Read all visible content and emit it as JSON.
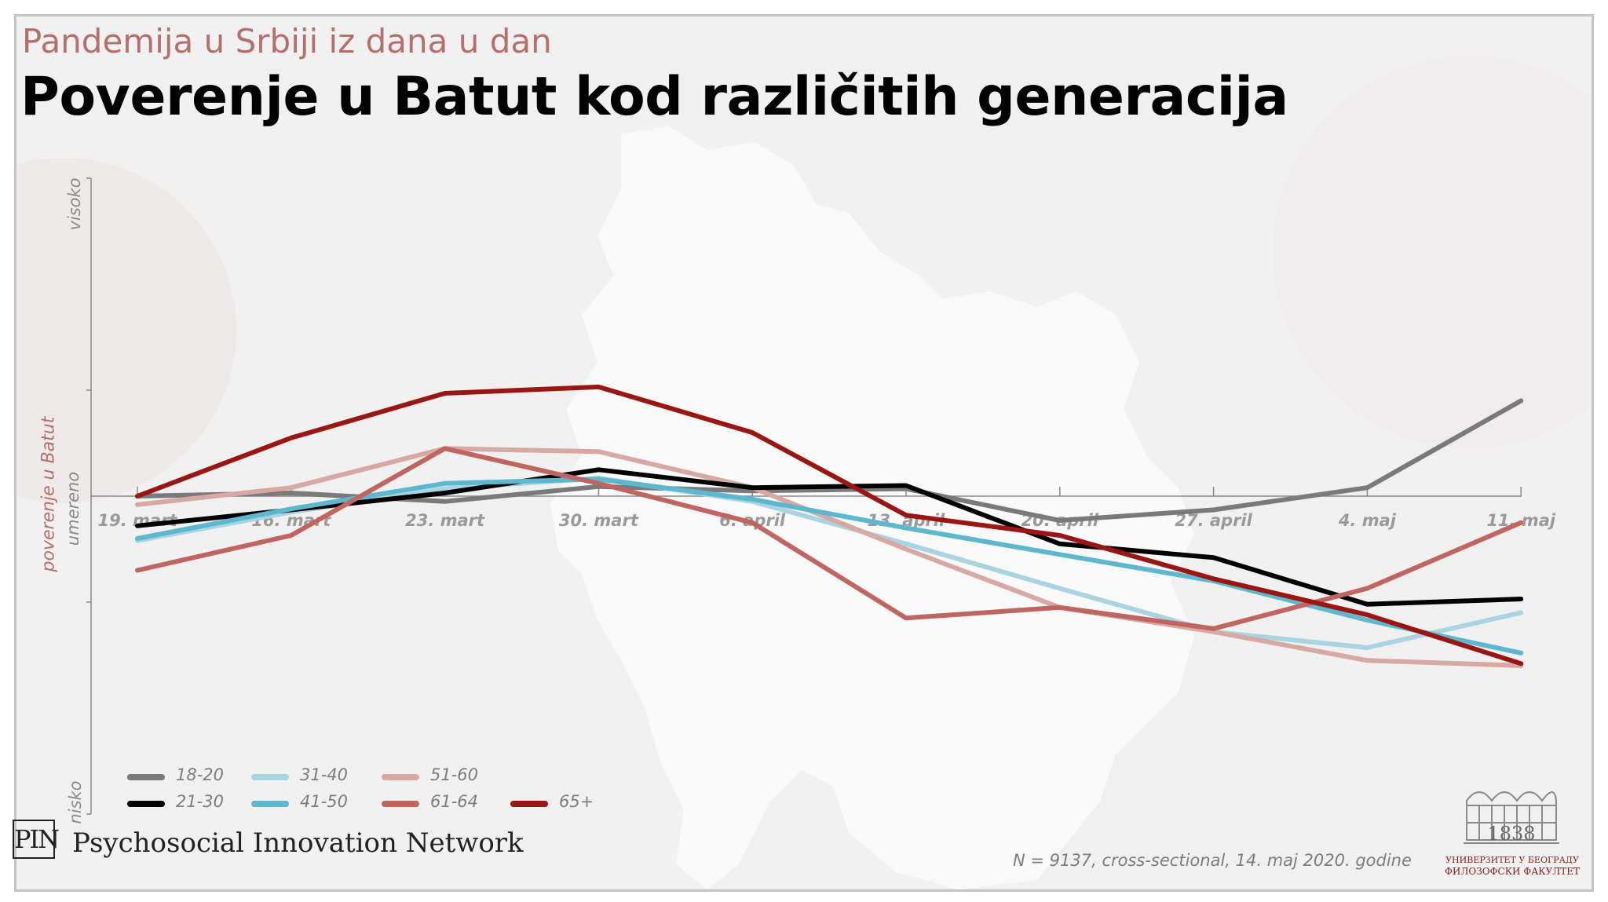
{
  "header": {
    "subtitle": "Pandemija u Srbiji iz dana u dan",
    "title": "Poverenje u Batut kod različitih generacija"
  },
  "chart_data": {
    "type": "line",
    "x": [
      "19. mart",
      "16. mart",
      "23. mart",
      "30. mart",
      "6. april",
      "13. april",
      "20. april",
      "27. april",
      "4. maj",
      "11. maj"
    ],
    "y_categories": [
      "visoko",
      "umereno",
      "nisko"
    ],
    "ylabel": "poverenje u Batut",
    "ylim": [
      0,
      6
    ],
    "series": [
      {
        "name": "18-20",
        "color": "#7a7a7a",
        "values": [
          3.0,
          3.03,
          2.95,
          3.09,
          3.05,
          3.07,
          2.77,
          2.87,
          3.08,
          3.9
        ]
      },
      {
        "name": "31-40",
        "color": "#a9d5e2",
        "values": [
          2.58,
          2.85,
          3.07,
          3.17,
          2.95,
          2.55,
          2.13,
          1.72,
          1.57,
          1.9
        ]
      },
      {
        "name": "51-60",
        "color": "#d8a8a3",
        "values": [
          2.92,
          3.08,
          3.45,
          3.42,
          3.08,
          2.5,
          1.95,
          1.72,
          1.45,
          1.4
        ]
      },
      {
        "name": "21-30",
        "color": "#000000",
        "values": [
          2.72,
          2.87,
          3.03,
          3.25,
          3.08,
          3.1,
          2.55,
          2.42,
          1.98,
          2.03
        ]
      },
      {
        "name": "41-50",
        "color": "#5cb8cf",
        "values": [
          2.6,
          2.88,
          3.12,
          3.16,
          2.97,
          2.7,
          2.45,
          2.2,
          1.83,
          1.52
        ]
      },
      {
        "name": "61-64",
        "color": "#c06560",
        "values": [
          2.3,
          2.63,
          3.45,
          3.12,
          2.75,
          1.85,
          1.95,
          1.75,
          2.13,
          2.75
        ]
      },
      {
        "name": "65+",
        "color": "#9b1612",
        "values": [
          3.0,
          3.55,
          3.97,
          4.03,
          3.6,
          2.82,
          2.63,
          2.22,
          1.88,
          1.42
        ]
      }
    ],
    "legend_position": "bottom-left"
  },
  "footer": {
    "org_logo": "PIN",
    "org_name": "Psychosocial Innovation Network",
    "note": "N = 9137, cross-sectional, 14. maj 2020. godine",
    "uni_logo": "university-building-icon",
    "uni_year": "1838",
    "uni_line1": "УНИВЕРЗИТЕТ У БЕОГРАДУ",
    "uni_line2": "ФИЛОЗОФСКИ ФАКУЛТЕТ"
  }
}
